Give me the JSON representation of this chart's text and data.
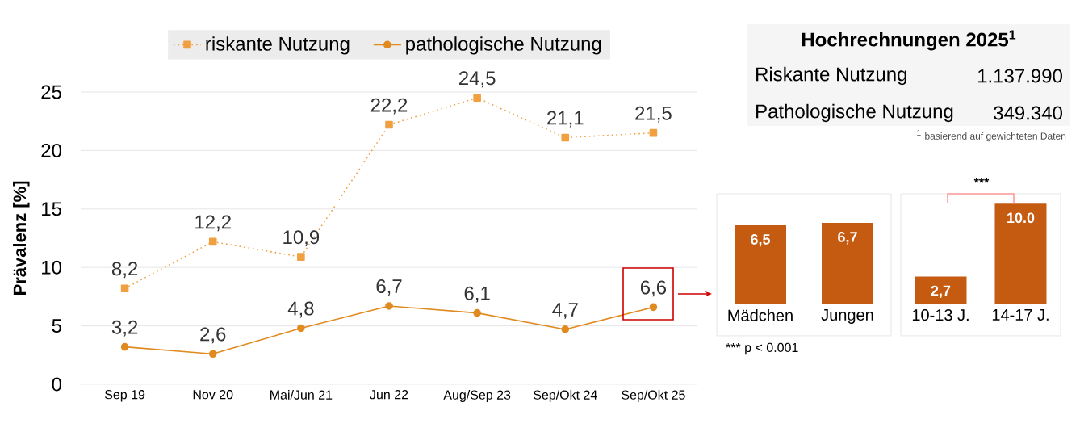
{
  "chart_data": [
    {
      "type": "line",
      "ylabel": "Prävalenz [%]",
      "categories": [
        "Sep 19",
        "Nov 20",
        "Mai/Jun 21",
        "Jun 22",
        "Aug/Sep 23",
        "Sep/Okt 24",
        "Sep/Okt 25"
      ],
      "series": [
        {
          "name": "riskante Nutzung",
          "color": "#f0a040",
          "marker": "square",
          "line_style": "dotted",
          "values": [
            8.2,
            12.2,
            10.9,
            22.2,
            24.5,
            21.1,
            21.5
          ],
          "value_labels": [
            "8,2",
            "12,2",
            "10,9",
            "22,2",
            "24,5",
            "21,1",
            "21,5"
          ]
        },
        {
          "name": "pathologische Nutzung",
          "color": "#e08a20",
          "marker": "circle",
          "line_style": "solid",
          "values": [
            3.2,
            2.6,
            4.8,
            6.7,
            6.1,
            4.7,
            6.6
          ],
          "value_labels": [
            "3,2",
            "2,6",
            "4,8",
            "6,7",
            "6,1",
            "4,7",
            "6,6"
          ]
        }
      ],
      "ylim": [
        0,
        25
      ],
      "yticks": [
        0,
        5,
        10,
        15,
        20,
        25
      ],
      "grid": "y",
      "legend": "top"
    },
    {
      "type": "other",
      "title": "Hochrechnungen 2025$^{1}$",
      "categories": [
        "Riskante Nutzung",
        "Pathologische Nutzung"
      ],
      "value_labels": [
        "1.137.990",
        "349.340"
      ],
      "annotations": [
        "$^{1}$ basierend auf gewichteten Daten"
      ]
    },
    {
      "type": "bar",
      "categories": [
        "Mädchen",
        "Jungen"
      ],
      "values": [
        6.5,
        6.7
      ],
      "value_labels": [
        "6,5",
        "6,7"
      ],
      "color": "#c55a11",
      "annotations": [
        "*** p < 0.001"
      ]
    },
    {
      "type": "bar",
      "categories": [
        "10-13 J.",
        "14-17 J."
      ],
      "values": [
        2.7,
        10.0
      ],
      "value_labels": [
        "2,7",
        "10.0"
      ],
      "color": "#c55a11",
      "annotations": [
        "***"
      ]
    }
  ]
}
